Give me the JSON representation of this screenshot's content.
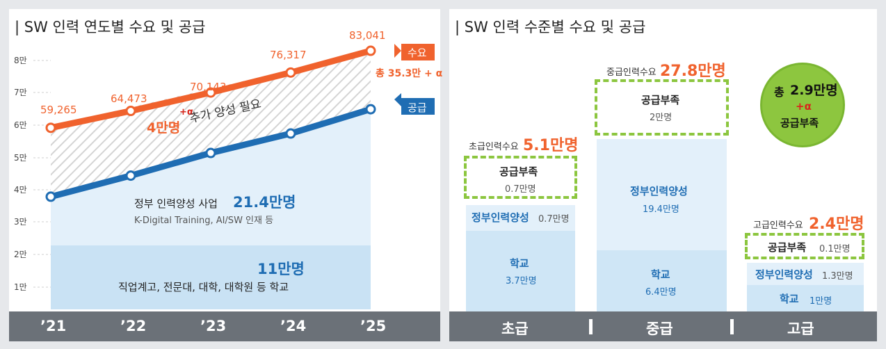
{
  "left": {
    "title": "| SW 인력 연도별 수요 및 공급",
    "x_labels": [
      "’21",
      "’22",
      "’23",
      "’24",
      "’25"
    ],
    "y_ticks": [
      "1만",
      "2만",
      "3만",
      "4만",
      "5만",
      "6만",
      "7만",
      "8만"
    ],
    "demand_labels": [
      "59,265",
      "64,473",
      "70,143",
      "76,317",
      "83,041"
    ],
    "tag_demand": "수요",
    "tag_supply": "공급",
    "total_note": "총 35.3만 + α",
    "gap_value": "4만명",
    "gap_alpha": "+α",
    "gap_text": "추가 양성 필요",
    "gov_label": "정부 인력양성 사업",
    "gov_value": "21.4만명",
    "gov_sub": "K-Digital Training, AI/SW 인재 등",
    "school_value": "11만명",
    "school_label": "직업계고, 전문대, 대학, 대학원 등 학교"
  },
  "right": {
    "title": "| SW 인력 수준별 수요 및 공급",
    "footer": [
      "초급",
      "중급",
      "고급"
    ],
    "basic": {
      "demand_label": "초급인력수요",
      "demand_value": "5.1만명",
      "shortage_label": "공급부족",
      "shortage_value": "0.7만명",
      "gov_label": "정부인력양성",
      "gov_value": "0.7만명",
      "school_label": "학교",
      "school_value": "3.7만명"
    },
    "mid": {
      "demand_label": "중급인력수요",
      "demand_value": "27.8만명",
      "shortage_label": "공급부족",
      "shortage_value": "2만명",
      "gov_label": "정부인력양성",
      "gov_value": "19.4만명",
      "school_label": "학교",
      "school_value": "6.4만명"
    },
    "high": {
      "demand_label": "고급인력수요",
      "demand_value": "2.4만명",
      "shortage_label": "공급부족",
      "shortage_value": "0.1만명",
      "gov_label": "정부인력양성",
      "gov_value": "1.3만명",
      "school_label": "학교",
      "school_value": "1만명"
    },
    "circle_prefix": "총",
    "circle_value": "2.9만명",
    "circle_alpha": "+α",
    "circle_label": "공급부족"
  },
  "colors": {
    "demand": "#f0622d",
    "supply": "#1f6db3",
    "light_blue": "#cfe6f6",
    "lighter_blue": "#e3f0fa",
    "dashed_green": "#8cc63f",
    "circle_green": "#8dc63f",
    "footer": "#6b7178"
  },
  "chart_data": [
    {
      "type": "line",
      "title": "| SW 인력 연도별 수요 및 공급",
      "categories": [
        "’21",
        "’22",
        "’23",
        "’24",
        "’25"
      ],
      "ylim": [
        0,
        85000
      ],
      "series": [
        {
          "name": "수요",
          "values": [
            59265,
            64473,
            70143,
            76317,
            83041
          ]
        },
        {
          "name": "공급",
          "values": [
            38000,
            44500,
            51500,
            57500,
            65000
          ]
        }
      ]
    },
    {
      "type": "bar",
      "title": "| SW 인력 수준별 수요 및 공급",
      "categories": [
        "초급",
        "중급",
        "고급"
      ],
      "series": [
        {
          "name": "학교",
          "values": [
            3.7,
            6.4,
            1
          ]
        },
        {
          "name": "정부인력양성",
          "values": [
            0.7,
            19.4,
            1.3
          ]
        },
        {
          "name": "공급부족",
          "values": [
            0.7,
            2,
            0.1
          ]
        }
      ]
    }
  ]
}
